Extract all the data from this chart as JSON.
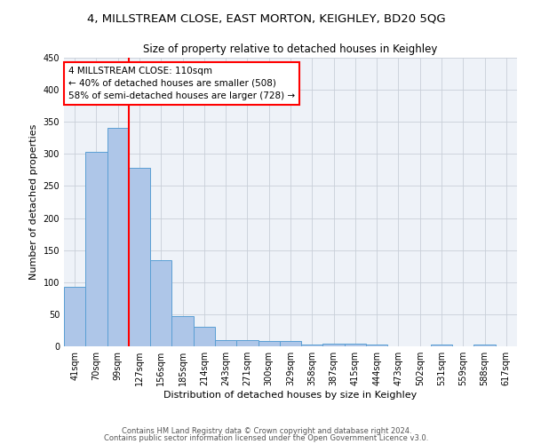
{
  "title": "4, MILLSTREAM CLOSE, EAST MORTON, KEIGHLEY, BD20 5QG",
  "subtitle": "Size of property relative to detached houses in Keighley",
  "xlabel": "Distribution of detached houses by size in Keighley",
  "ylabel": "Number of detached properties",
  "categories": [
    "41sqm",
    "70sqm",
    "99sqm",
    "127sqm",
    "156sqm",
    "185sqm",
    "214sqm",
    "243sqm",
    "271sqm",
    "300sqm",
    "329sqm",
    "358sqm",
    "387sqm",
    "415sqm",
    "444sqm",
    "473sqm",
    "502sqm",
    "531sqm",
    "559sqm",
    "588sqm",
    "617sqm"
  ],
  "values": [
    93,
    303,
    340,
    278,
    134,
    47,
    31,
    10,
    10,
    8,
    8,
    3,
    4,
    4,
    3,
    0,
    0,
    3,
    0,
    3,
    0
  ],
  "bar_color": "#aec6e8",
  "bar_edge_color": "#5a9fd4",
  "red_line_index": 2,
  "annotation_text": "4 MILLSTREAM CLOSE: 110sqm\n← 40% of detached houses are smaller (508)\n58% of semi-detached houses are larger (728) →",
  "annotation_box_color": "white",
  "annotation_box_edge": "red",
  "footer1": "Contains HM Land Registry data © Crown copyright and database right 2024.",
  "footer2": "Contains public sector information licensed under the Open Government Licence v3.0.",
  "ylim": [
    0,
    450
  ],
  "yticks": [
    0,
    50,
    100,
    150,
    200,
    250,
    300,
    350,
    400,
    450
  ],
  "bg_color": "#ffffff",
  "axes_bg_color": "#eef2f8",
  "grid_color": "#c8cfd8",
  "title_fontsize": 9.5,
  "subtitle_fontsize": 8.5,
  "ylabel_fontsize": 8,
  "xlabel_fontsize": 8,
  "tick_fontsize": 7,
  "annotation_fontsize": 7.5,
  "footer_fontsize": 6
}
